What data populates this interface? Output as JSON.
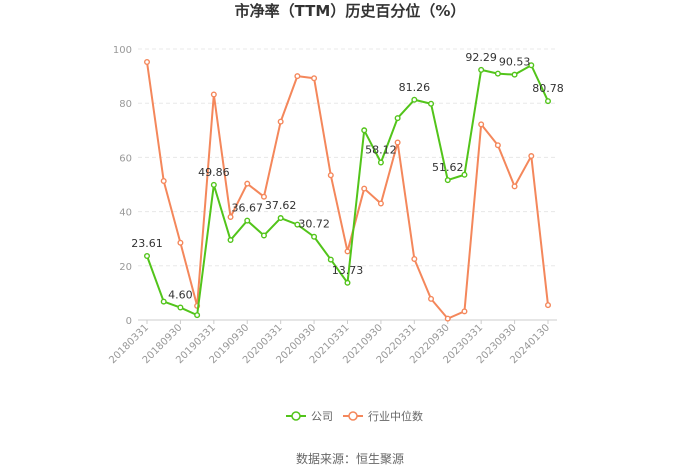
{
  "chart_data": {
    "type": "line",
    "title": "市净率（TTM）历史百分位（%）",
    "source": "数据来源：恒生聚源",
    "ylim": [
      0,
      100
    ],
    "yticks": [
      0,
      20,
      40,
      60,
      80,
      100
    ],
    "grid": true,
    "legend_position": "bottom",
    "x_tick_labels": [
      "20180331",
      "20180930",
      "20190331",
      "20190930",
      "20200331",
      "20200930",
      "20210331",
      "20210930",
      "20220331",
      "20220930",
      "20230331",
      "20230930",
      "20240130"
    ],
    "series": [
      {
        "name": "公司",
        "color": "#52c41a",
        "values": [
          23.61,
          6.8,
          4.6,
          1.8,
          49.86,
          29.5,
          36.67,
          31.2,
          37.62,
          35.2,
          30.72,
          22.3,
          13.73,
          70.0,
          58.12,
          74.5,
          81.26,
          79.8,
          51.62,
          53.6,
          92.29,
          90.9,
          90.53,
          94.0,
          80.78
        ],
        "labels": {
          "0": "23.61",
          "2": "4.60",
          "4": "49.86",
          "6": "36.67",
          "8": "37.62",
          "10": "30.72",
          "12": "13.73",
          "14": "58.12",
          "16": "81.26",
          "18": "51.62",
          "20": "92.29",
          "22": "90.53",
          "24": "80.78"
        }
      },
      {
        "name": "行业中位数",
        "color": "#f4875b",
        "values": [
          95.2,
          51.3,
          28.5,
          5.2,
          83.2,
          38.0,
          50.3,
          45.5,
          73.2,
          90.0,
          89.2,
          53.4,
          25.3,
          48.5,
          43.0,
          65.5,
          22.5,
          7.8,
          0.5,
          3.2,
          72.2,
          64.5,
          49.3,
          60.5,
          5.5
        ]
      }
    ]
  }
}
